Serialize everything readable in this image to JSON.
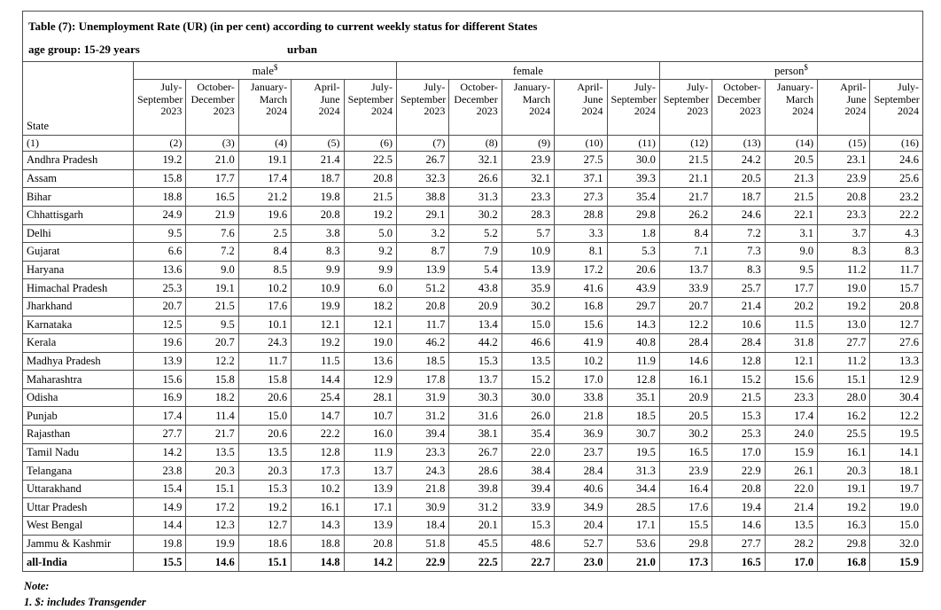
{
  "title": "Table (7): Unemployment Rate (UR) (in per cent) according to current weekly status for different States",
  "age_group": "age group: 15-29 years",
  "sector": "urban",
  "state_header": "State",
  "groups": [
    {
      "label": "male",
      "sup": "$",
      "periods": [
        "July-\nSeptember\n2023",
        "October-\nDecember\n2023",
        "January-\nMarch\n2024",
        "April-June\n2024",
        "July-\nSeptember\n2024"
      ]
    },
    {
      "label": "female",
      "sup": "",
      "periods": [
        "July-\nSeptember\n2023",
        "October-\nDecember\n2023",
        "January-\nMarch 2024",
        "April-June\n2024",
        "July-\nSeptember\n2024"
      ]
    },
    {
      "label": "person",
      "sup": "$",
      "periods": [
        "July-\nSeptember\n2023",
        "October-\nDecember\n2023",
        "January-\nMarch\n2024",
        "April-June\n2024",
        "July-\nSeptember\n2024"
      ]
    }
  ],
  "col_numbers": [
    "(1)",
    "(2)",
    "(3)",
    "(4)",
    "(5)",
    "(6)",
    "(7)",
    "(8)",
    "(9)",
    "(10)",
    "(11)",
    "(12)",
    "(13)",
    "(14)",
    "(15)",
    "(16)"
  ],
  "rows": [
    {
      "state": "Andhra Pradesh",
      "male": [
        "19.2",
        "21.0",
        "19.1",
        "21.4",
        "22.5"
      ],
      "female": [
        "26.7",
        "32.1",
        "23.9",
        "27.5",
        "30.0"
      ],
      "person": [
        "21.5",
        "24.2",
        "20.5",
        "23.1",
        "24.6"
      ]
    },
    {
      "state": "Assam",
      "male": [
        "15.8",
        "17.7",
        "17.4",
        "18.7",
        "20.8"
      ],
      "female": [
        "32.3",
        "26.6",
        "32.1",
        "37.1",
        "39.3"
      ],
      "person": [
        "21.1",
        "20.5",
        "21.3",
        "23.9",
        "25.6"
      ]
    },
    {
      "state": "Bihar",
      "male": [
        "18.8",
        "16.5",
        "21.2",
        "19.8",
        "21.5"
      ],
      "female": [
        "38.8",
        "31.3",
        "23.3",
        "27.3",
        "35.4"
      ],
      "person": [
        "21.7",
        "18.7",
        "21.5",
        "20.8",
        "23.2"
      ]
    },
    {
      "state": "Chhattisgarh",
      "male": [
        "24.9",
        "21.9",
        "19.6",
        "20.8",
        "19.2"
      ],
      "female": [
        "29.1",
        "30.2",
        "28.3",
        "28.8",
        "29.8"
      ],
      "person": [
        "26.2",
        "24.6",
        "22.1",
        "23.3",
        "22.2"
      ]
    },
    {
      "state": "Delhi",
      "male": [
        "9.5",
        "7.6",
        "2.5",
        "3.8",
        "5.0"
      ],
      "female": [
        "3.2",
        "5.2",
        "5.7",
        "3.3",
        "1.8"
      ],
      "person": [
        "8.4",
        "7.2",
        "3.1",
        "3.7",
        "4.3"
      ]
    },
    {
      "state": "Gujarat",
      "male": [
        "6.6",
        "7.2",
        "8.4",
        "8.3",
        "9.2"
      ],
      "female": [
        "8.7",
        "7.9",
        "10.9",
        "8.1",
        "5.3"
      ],
      "person": [
        "7.1",
        "7.3",
        "9.0",
        "8.3",
        "8.3"
      ]
    },
    {
      "state": "Haryana",
      "male": [
        "13.6",
        "9.0",
        "8.5",
        "9.9",
        "9.9"
      ],
      "female": [
        "13.9",
        "5.4",
        "13.9",
        "17.2",
        "20.6"
      ],
      "person": [
        "13.7",
        "8.3",
        "9.5",
        "11.2",
        "11.7"
      ]
    },
    {
      "state": "Himachal Pradesh",
      "male": [
        "25.3",
        "19.1",
        "10.2",
        "10.9",
        "6.0"
      ],
      "female": [
        "51.2",
        "43.8",
        "35.9",
        "41.6",
        "43.9"
      ],
      "person": [
        "33.9",
        "25.7",
        "17.7",
        "19.0",
        "15.7"
      ]
    },
    {
      "state": "Jharkhand",
      "male": [
        "20.7",
        "21.5",
        "17.6",
        "19.9",
        "18.2"
      ],
      "female": [
        "20.8",
        "20.9",
        "30.2",
        "16.8",
        "29.7"
      ],
      "person": [
        "20.7",
        "21.4",
        "20.2",
        "19.2",
        "20.8"
      ]
    },
    {
      "state": "Karnataka",
      "male": [
        "12.5",
        "9.5",
        "10.1",
        "12.1",
        "12.1"
      ],
      "female": [
        "11.7",
        "13.4",
        "15.0",
        "15.6",
        "14.3"
      ],
      "person": [
        "12.2",
        "10.6",
        "11.5",
        "13.0",
        "12.7"
      ]
    },
    {
      "state": "Kerala",
      "male": [
        "19.6",
        "20.7",
        "24.3",
        "19.2",
        "19.0"
      ],
      "female": [
        "46.2",
        "44.2",
        "46.6",
        "41.9",
        "40.8"
      ],
      "person": [
        "28.4",
        "28.4",
        "31.8",
        "27.7",
        "27.6"
      ]
    },
    {
      "state": "Madhya Pradesh",
      "male": [
        "13.9",
        "12.2",
        "11.7",
        "11.5",
        "13.6"
      ],
      "female": [
        "18.5",
        "15.3",
        "13.5",
        "10.2",
        "11.9"
      ],
      "person": [
        "14.6",
        "12.8",
        "12.1",
        "11.2",
        "13.3"
      ]
    },
    {
      "state": "Maharashtra",
      "male": [
        "15.6",
        "15.8",
        "15.8",
        "14.4",
        "12.9"
      ],
      "female": [
        "17.8",
        "13.7",
        "15.2",
        "17.0",
        "12.8"
      ],
      "person": [
        "16.1",
        "15.2",
        "15.6",
        "15.1",
        "12.9"
      ]
    },
    {
      "state": "Odisha",
      "male": [
        "16.9",
        "18.2",
        "20.6",
        "25.4",
        "28.1"
      ],
      "female": [
        "31.9",
        "30.3",
        "30.0",
        "33.8",
        "35.1"
      ],
      "person": [
        "20.9",
        "21.5",
        "23.3",
        "28.0",
        "30.4"
      ]
    },
    {
      "state": "Punjab",
      "male": [
        "17.4",
        "11.4",
        "15.0",
        "14.7",
        "10.7"
      ],
      "female": [
        "31.2",
        "31.6",
        "26.0",
        "21.8",
        "18.5"
      ],
      "person": [
        "20.5",
        "15.3",
        "17.4",
        "16.2",
        "12.2"
      ]
    },
    {
      "state": "Rajasthan",
      "male": [
        "27.7",
        "21.7",
        "20.6",
        "22.2",
        "16.0"
      ],
      "female": [
        "39.4",
        "38.1",
        "35.4",
        "36.9",
        "30.7"
      ],
      "person": [
        "30.2",
        "25.3",
        "24.0",
        "25.5",
        "19.5"
      ]
    },
    {
      "state": "Tamil Nadu",
      "male": [
        "14.2",
        "13.5",
        "13.5",
        "12.8",
        "11.9"
      ],
      "female": [
        "23.3",
        "26.7",
        "22.0",
        "23.7",
        "19.5"
      ],
      "person": [
        "16.5",
        "17.0",
        "15.9",
        "16.1",
        "14.1"
      ]
    },
    {
      "state": "Telangana",
      "male": [
        "23.8",
        "20.3",
        "20.3",
        "17.3",
        "13.7"
      ],
      "female": [
        "24.3",
        "28.6",
        "38.4",
        "28.4",
        "31.3"
      ],
      "person": [
        "23.9",
        "22.9",
        "26.1",
        "20.3",
        "18.1"
      ]
    },
    {
      "state": "Uttarakhand",
      "male": [
        "15.4",
        "15.1",
        "15.3",
        "10.2",
        "13.9"
      ],
      "female": [
        "21.8",
        "39.8",
        "39.4",
        "40.6",
        "34.4"
      ],
      "person": [
        "16.4",
        "20.8",
        "22.0",
        "19.1",
        "19.7"
      ]
    },
    {
      "state": "Uttar Pradesh",
      "male": [
        "14.9",
        "17.2",
        "19.2",
        "16.1",
        "17.1"
      ],
      "female": [
        "30.9",
        "31.2",
        "33.9",
        "34.9",
        "28.5"
      ],
      "person": [
        "17.6",
        "19.4",
        "21.4",
        "19.2",
        "19.0"
      ]
    },
    {
      "state": "West Bengal",
      "male": [
        "14.4",
        "12.3",
        "12.7",
        "14.3",
        "13.9"
      ],
      "female": [
        "18.4",
        "20.1",
        "15.3",
        "20.4",
        "17.1"
      ],
      "person": [
        "15.5",
        "14.6",
        "13.5",
        "16.3",
        "15.0"
      ]
    },
    {
      "state": "Jammu & Kashmir",
      "male": [
        "19.8",
        "19.9",
        "18.6",
        "18.8",
        "20.8"
      ],
      "female": [
        "51.8",
        "45.5",
        "48.6",
        "52.7",
        "53.6"
      ],
      "person": [
        "29.8",
        "27.7",
        "28.2",
        "29.8",
        "32.0"
      ]
    }
  ],
  "all_india": {
    "state": "all-India",
    "male": [
      "15.5",
      "14.6",
      "15.1",
      "14.8",
      "14.2"
    ],
    "female": [
      "22.9",
      "22.5",
      "22.7",
      "23.0",
      "21.0"
    ],
    "person": [
      "17.3",
      "16.5",
      "17.0",
      "16.8",
      "15.9"
    ]
  },
  "notes": [
    "Note:",
    "1. $: includes Transgender"
  ],
  "colors": {
    "border": "#4d4d4d",
    "text": "#000000",
    "background": "#ffffff"
  }
}
